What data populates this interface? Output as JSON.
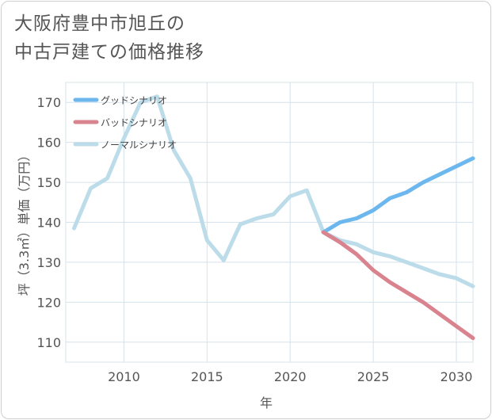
{
  "title_line1": "大阪府豊中市旭丘の",
  "title_line2": "中古戸建ての価格推移",
  "chart_data": {
    "type": "line",
    "title": "大阪府豊中市旭丘の中古戸建ての価格推移",
    "xlabel": "年",
    "ylabel": "坪（3.3㎡）単価（万円）",
    "xlim": [
      2006.5,
      2031
    ],
    "ylim": [
      105,
      175
    ],
    "xticks": [
      2010,
      2015,
      2020,
      2025,
      2030
    ],
    "yticks": [
      110,
      120,
      130,
      140,
      150,
      160,
      170
    ],
    "grid": true,
    "legend_position": "top-left",
    "series": [
      {
        "name": "グッドシナリオ",
        "color": "#6cb8ee",
        "x": [
          2022,
          2023,
          2024,
          2025,
          2026,
          2027,
          2028,
          2029,
          2030,
          2031
        ],
        "values": [
          137.5,
          140,
          141,
          143,
          146,
          147.5,
          150,
          152,
          154,
          156
        ]
      },
      {
        "name": "バッドシナリオ",
        "color": "#d9838e",
        "x": [
          2022,
          2023,
          2024,
          2025,
          2026,
          2027,
          2028,
          2029,
          2030,
          2031
        ],
        "values": [
          137.5,
          135,
          132,
          128,
          125,
          122.5,
          120,
          117,
          114,
          111
        ]
      },
      {
        "name": "ノーマルシナリオ",
        "color": "#bcdcea",
        "x": [
          2007,
          2008,
          2009,
          2010,
          2011,
          2012,
          2013,
          2014,
          2015,
          2016,
          2017,
          2018,
          2019,
          2020,
          2021,
          2022,
          2023,
          2024,
          2025,
          2026,
          2027,
          2028,
          2029,
          2030,
          2031
        ],
        "values": [
          138.5,
          148.5,
          151,
          161,
          170,
          171.5,
          158,
          151,
          135.5,
          130.5,
          139.5,
          141,
          142,
          146.5,
          148,
          137.5,
          135.5,
          134.5,
          132.5,
          131.5,
          130,
          128.5,
          127,
          126,
          124
        ]
      }
    ]
  }
}
